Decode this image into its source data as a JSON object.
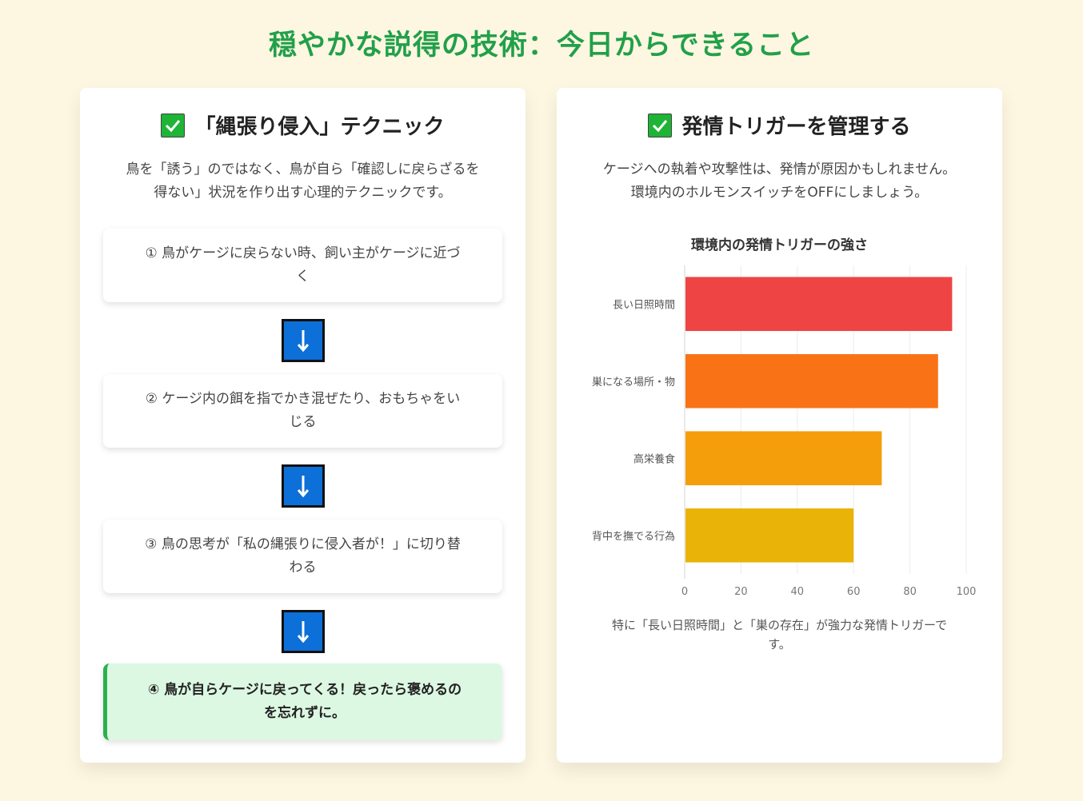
{
  "page": {
    "title": "穏やかな説得の技術：今日からできること"
  },
  "left": {
    "heading": "「縄張り侵入」テクニック",
    "desc_line1": "鳥を「誘う」のではなく、鳥が自ら「確認しに戻らざるを",
    "desc_line2": "得ない」状況を作り出す心理的テクニックです。",
    "steps": [
      {
        "line1": "① 鳥がケージに戻らない時、飼い主がケージに近づ",
        "line2": "く"
      },
      {
        "line1": "② ケージ内の餌を指でかき混ぜたり、おもちゃをい",
        "line2": "じる"
      },
      {
        "line1": "③ 鳥の思考が「私の縄張りに侵入者が！」に切り替",
        "line2": "わる"
      },
      {
        "line1": "④ 鳥が自らケージに戻ってくる！戻ったら褒めるの",
        "line2": "を忘れずに。"
      }
    ]
  },
  "right": {
    "heading": "発情トリガーを管理する",
    "desc_line1": "ケージへの執着や攻撃性は、発情が原因かもしれません。",
    "desc_line2": "環境内のホルモンスイッチをOFFにしましょう。",
    "note_line1": "特に「長い日照時間」と「巣の存在」が強力な発情トリガーで",
    "note_line2": "す。"
  },
  "colors": {
    "title": "#21a04a",
    "check": "#1fb436",
    "arrow": "#0d6fd8"
  },
  "chart_data": {
    "type": "bar",
    "orientation": "horizontal",
    "title": "環境内の発情トリガーの強さ",
    "categories": [
      "長い日照時間",
      "巣になる場所・物",
      "高栄養食",
      "背中を撫でる行為"
    ],
    "values": [
      95,
      90,
      70,
      60
    ],
    "colors": [
      "#ef4444",
      "#f97316",
      "#f59e0b",
      "#eab308"
    ],
    "xlim": [
      0,
      100
    ],
    "xticks": [
      0,
      20,
      40,
      60,
      80,
      100
    ],
    "grid": true,
    "legend": "none"
  }
}
